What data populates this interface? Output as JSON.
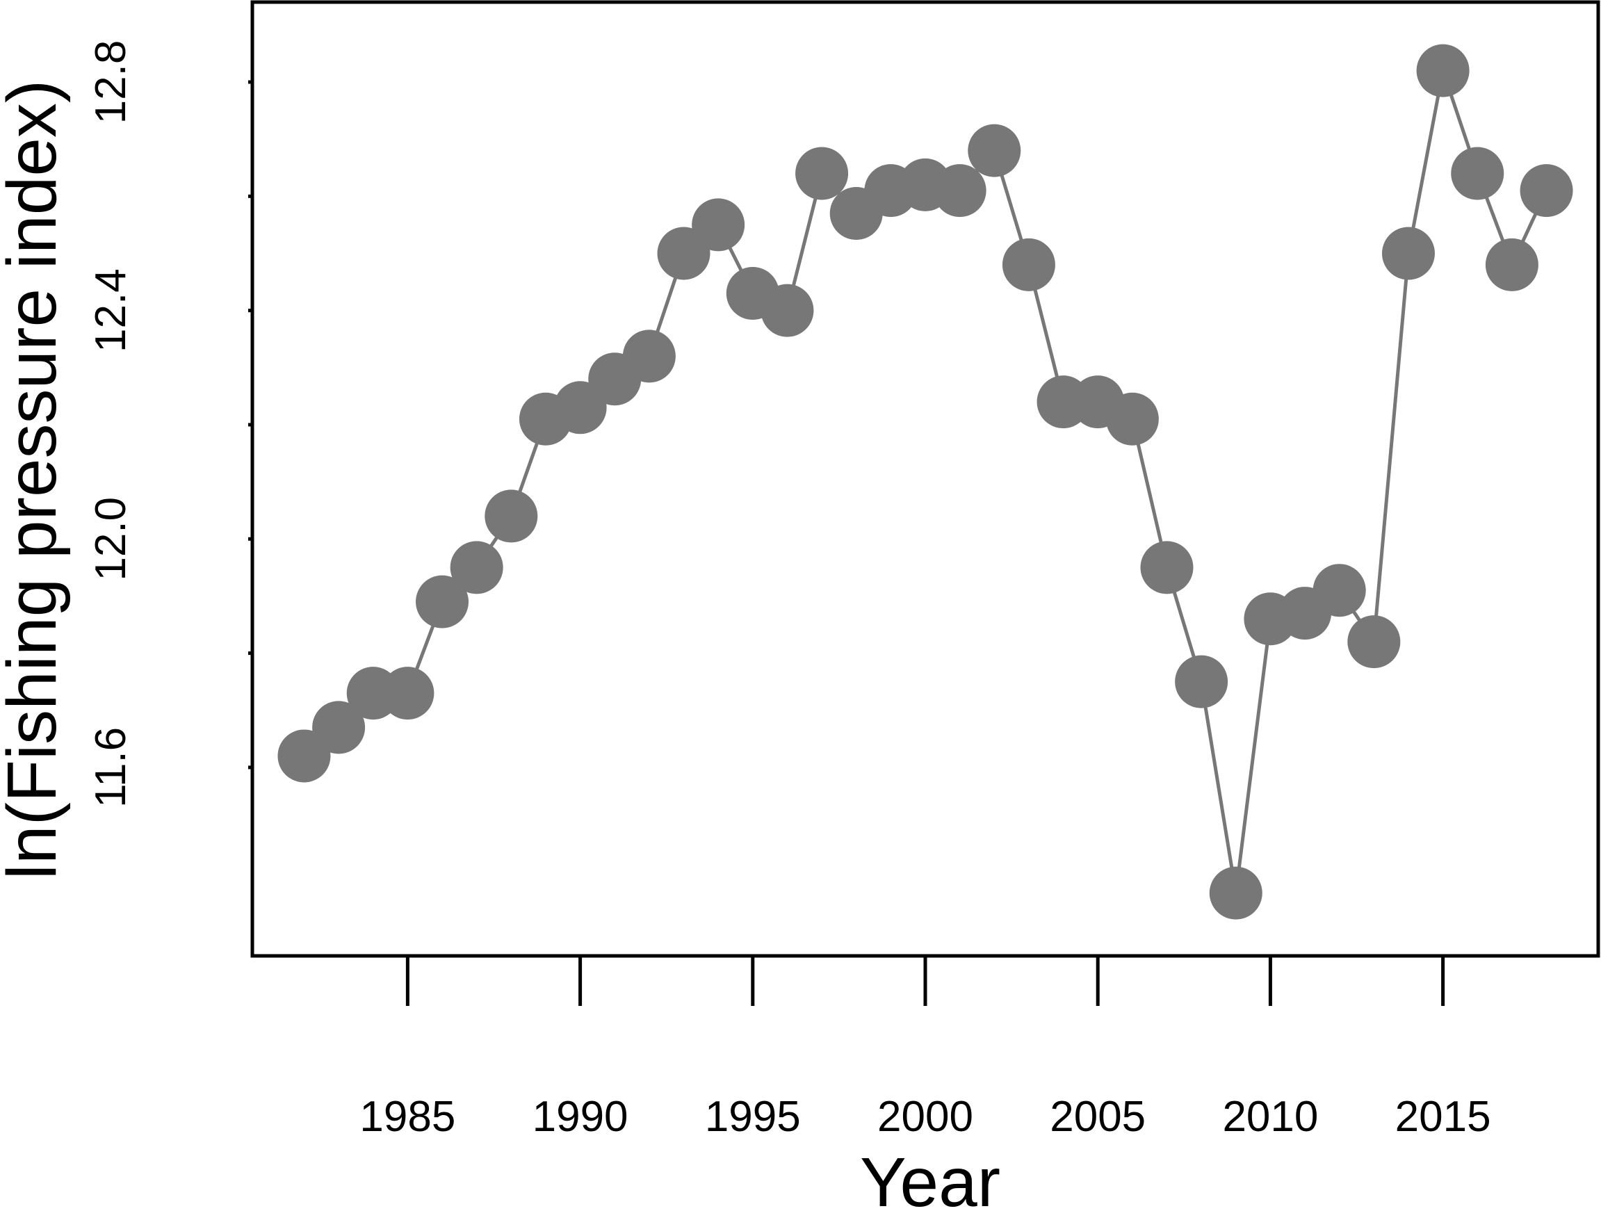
{
  "chart_data": {
    "type": "line",
    "xlabel": "Year",
    "ylabel": "ln(Fishing pressure index)",
    "xlim": [
      1980.5,
      2019.5
    ],
    "ylim": [
      11.27,
      12.94
    ],
    "xticks": [
      1985,
      1990,
      1995,
      2000,
      2005,
      2010,
      2015
    ],
    "xtick_labels": [
      "1985",
      "1990",
      "1995",
      "2000",
      "2005",
      "2010",
      "2015"
    ],
    "yticks": [
      11.6,
      11.8,
      12.0,
      12.2,
      12.4,
      12.6,
      12.8
    ],
    "ytick_labels": [
      "11.6",
      "",
      "12.0",
      "",
      "12.4",
      "",
      "12.8"
    ],
    "grid": false,
    "markers": "filled-circle",
    "color": "#777777",
    "series": [
      {
        "x": [
          1982,
          1983,
          1984,
          1985,
          1986,
          1987,
          1988,
          1989,
          1990,
          1991,
          1992,
          1993,
          1994,
          1995,
          1996,
          1997,
          1998,
          1999,
          2000,
          2001,
          2002,
          2003,
          2004,
          2005,
          2006,
          2007,
          2008,
          2009,
          2010,
          2011,
          2012,
          2013,
          2014,
          2015,
          2016,
          2017,
          2018
        ],
        "y": [
          11.62,
          11.67,
          11.73,
          11.73,
          11.89,
          11.95,
          12.04,
          12.21,
          12.23,
          12.28,
          12.32,
          12.5,
          12.55,
          12.43,
          12.4,
          12.64,
          12.57,
          12.61,
          12.62,
          12.61,
          12.68,
          12.48,
          12.24,
          12.24,
          12.21,
          11.95,
          11.75,
          11.38,
          11.86,
          11.87,
          11.91,
          11.82,
          12.5,
          12.82,
          12.64,
          12.48,
          12.61
        ]
      }
    ]
  }
}
